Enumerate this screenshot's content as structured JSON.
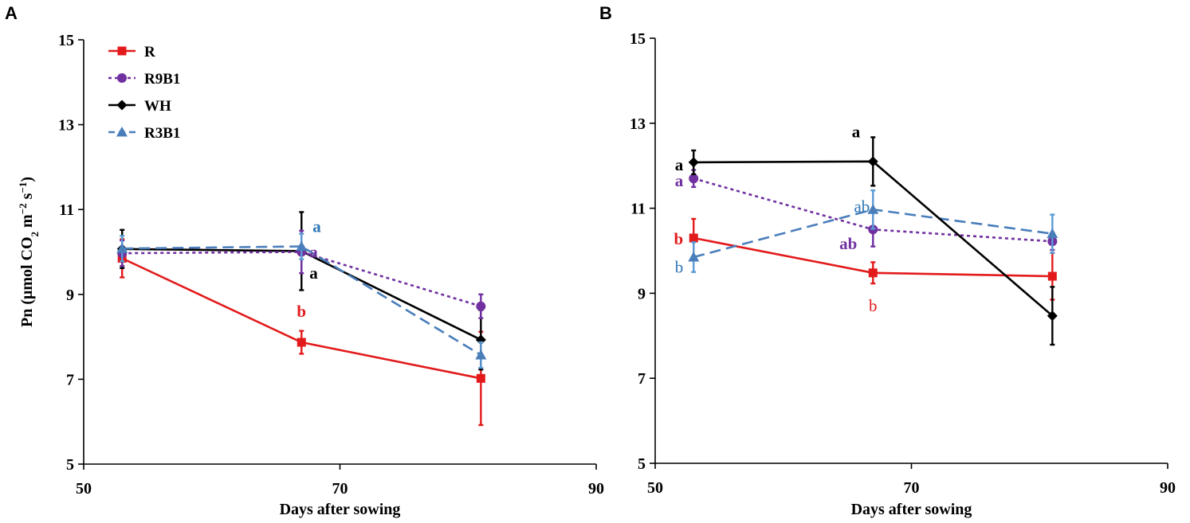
{
  "ylabel_parts": {
    "pre": "Pn (μmol CO",
    "sub": "2",
    "mid": " m",
    "sup1": "−2",
    "mid2": " s",
    "sup2": "−1",
    "post": ")"
  },
  "series_styles": [
    {
      "name": "R",
      "color": "#e31a1c",
      "dash": "",
      "marker": "square"
    },
    {
      "name": "R9B1",
      "color": "#7030a0",
      "dash": "4 4",
      "marker": "circle"
    },
    {
      "name": "WH",
      "color": "#000000",
      "dash": "",
      "marker": "diamond"
    },
    {
      "name": "R3B1",
      "color": "#4a7ebb",
      "dash": "14 7",
      "marker": "triangle"
    }
  ],
  "chart_data": [
    {
      "type": "line",
      "panel": "A",
      "title": "",
      "xlabel": "Days after sowing",
      "ylabel": "Pn (μmol CO2 m−2 s−1)",
      "xlim": [
        50,
        90
      ],
      "ylim": [
        5,
        15
      ],
      "xticks": [
        50,
        70,
        90
      ],
      "yticks": [
        5,
        7,
        9,
        11,
        13,
        15
      ],
      "legend": [
        "R",
        "R9B1",
        "WH",
        "R3B1"
      ],
      "legend_position": "top-left",
      "x": [
        53,
        67,
        81
      ],
      "series": [
        {
          "name": "R",
          "values": [
            9.85,
            7.87,
            7.02
          ],
          "errors": [
            0.45,
            0.27,
            1.1
          ]
        },
        {
          "name": "R9B1",
          "values": [
            9.97,
            10.0,
            8.72
          ],
          "errors": [
            0.3,
            0.5,
            0.28
          ]
        },
        {
          "name": "WH",
          "values": [
            10.07,
            10.02,
            7.93
          ],
          "errors": [
            0.45,
            0.92,
            0.7
          ]
        },
        {
          "name": "R3B1",
          "values": [
            10.08,
            10.13,
            7.57
          ],
          "errors": [
            0.3,
            0.3,
            0.3
          ]
        }
      ],
      "annotations": [
        {
          "text": "a",
          "series": "R3B1",
          "x": 67,
          "y": 10.6
        },
        {
          "text": "a",
          "series": "R9B1",
          "x": 67,
          "y": 10.0
        },
        {
          "text": "a",
          "series": "WH",
          "x": 67,
          "y": 9.5
        },
        {
          "text": "b",
          "series": "R",
          "x": 67,
          "y": 8.6
        }
      ]
    },
    {
      "type": "line",
      "panel": "B",
      "title": "",
      "xlabel": "Days after sowing",
      "ylabel": "",
      "xlim": [
        50,
        90
      ],
      "ylim": [
        5,
        15
      ],
      "xticks": [
        50,
        70,
        90
      ],
      "yticks": [
        5,
        7,
        9,
        11,
        13,
        15
      ],
      "x": [
        53,
        67,
        81
      ],
      "series": [
        {
          "name": "R",
          "values": [
            10.3,
            9.48,
            9.4
          ],
          "errors": [
            0.45,
            0.25,
            0.55
          ]
        },
        {
          "name": "R9B1",
          "values": [
            11.7,
            10.5,
            10.22
          ],
          "errors": [
            0.2,
            0.4,
            0.2
          ]
        },
        {
          "name": "WH",
          "values": [
            12.08,
            12.1,
            8.47
          ],
          "errors": [
            0.28,
            0.57,
            0.68
          ]
        },
        {
          "name": "R3B1",
          "values": [
            9.85,
            10.97,
            10.4
          ],
          "errors": [
            0.35,
            0.45,
            0.45
          ]
        }
      ],
      "annotations": [
        {
          "text": "a",
          "series": "WH",
          "x": 53,
          "y": 12.08
        },
        {
          "text": "a",
          "series": "R9B1",
          "x": 53,
          "y": 11.7
        },
        {
          "text": "b",
          "series": "R",
          "x": 53,
          "y": 10.3
        },
        {
          "text": "b",
          "series": "R3B1",
          "x": 53,
          "y": 9.75
        },
        {
          "text": "a",
          "series": "WH",
          "x": 67,
          "y": 12.8
        },
        {
          "text": "ab",
          "series": "R3B1",
          "x": 67,
          "y": 11.0
        },
        {
          "text": "ab",
          "series": "R9B1",
          "x": 67,
          "y": 10.3
        },
        {
          "text": "b",
          "series": "R",
          "x": 67,
          "y": 8.8
        }
      ]
    }
  ]
}
